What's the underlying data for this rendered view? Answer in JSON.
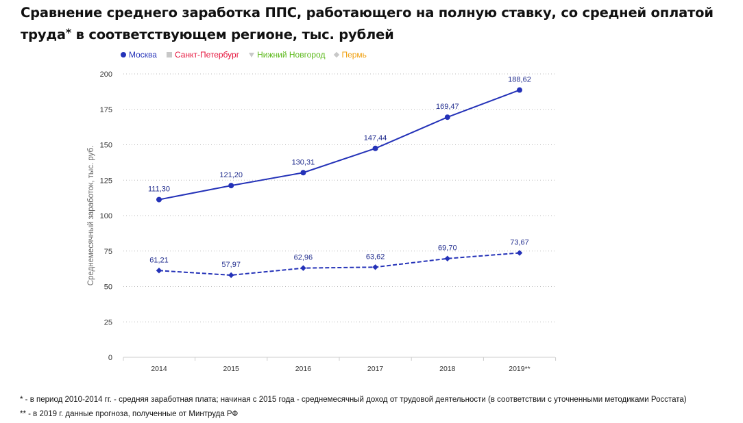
{
  "title": "Сравнение среднего заработка ППС, работающего на полную ставку, со средней оплатой труда",
  "title_mark": "*",
  "title_rest": " в соответствующем регионе, тыс. рублей",
  "legend": [
    {
      "label": "Москва",
      "color": "#2432b8",
      "marker": "circle",
      "active": true
    },
    {
      "label": "Санкт-Петербург",
      "color": "#e5143c",
      "marker": "square",
      "active": false
    },
    {
      "label": "Нижний Новгород",
      "color": "#5bb81a",
      "marker": "triangle-down",
      "active": false
    },
    {
      "label": "Пермь",
      "color": "#f0a010",
      "marker": "diamond",
      "active": false
    }
  ],
  "chart_data": {
    "type": "line",
    "ylabel": "Среднемесячный заработок, тыс. руб.",
    "categories": [
      "2014",
      "2015",
      "2016",
      "2017",
      "2018",
      "2019**"
    ],
    "ylim": [
      0,
      200
    ],
    "yticks": [
      "0",
      "25",
      "50",
      "75",
      "100",
      "125",
      "150",
      "175",
      "200"
    ],
    "grid": true,
    "series": [
      {
        "values": [
          111.3,
          121.2,
          130.31,
          147.44,
          169.47,
          188.62
        ],
        "labels": [
          "111,30",
          "121,20",
          "130,31",
          "147,44",
          "169,47",
          "188,62"
        ],
        "style": "solid",
        "marker": "circle",
        "color": "#2432b8"
      },
      {
        "values": [
          61.21,
          57.97,
          62.96,
          63.62,
          69.7,
          73.67
        ],
        "labels": [
          "61,21",
          "57,97",
          "62,96",
          "63,62",
          "69,70",
          "73,67"
        ],
        "style": "dashed",
        "marker": "diamond",
        "color": "#2432b8"
      }
    ]
  },
  "footnotes": [
    "* - в период 2010-2014 гг. - средняя заработная плата; начиная с 2015 года - среднемесячный доход от трудовой деятельности (в соответствии с уточненными методиками Росстата)",
    "** - в 2019 г. данные прогноза, полученные от Минтруда РФ"
  ]
}
